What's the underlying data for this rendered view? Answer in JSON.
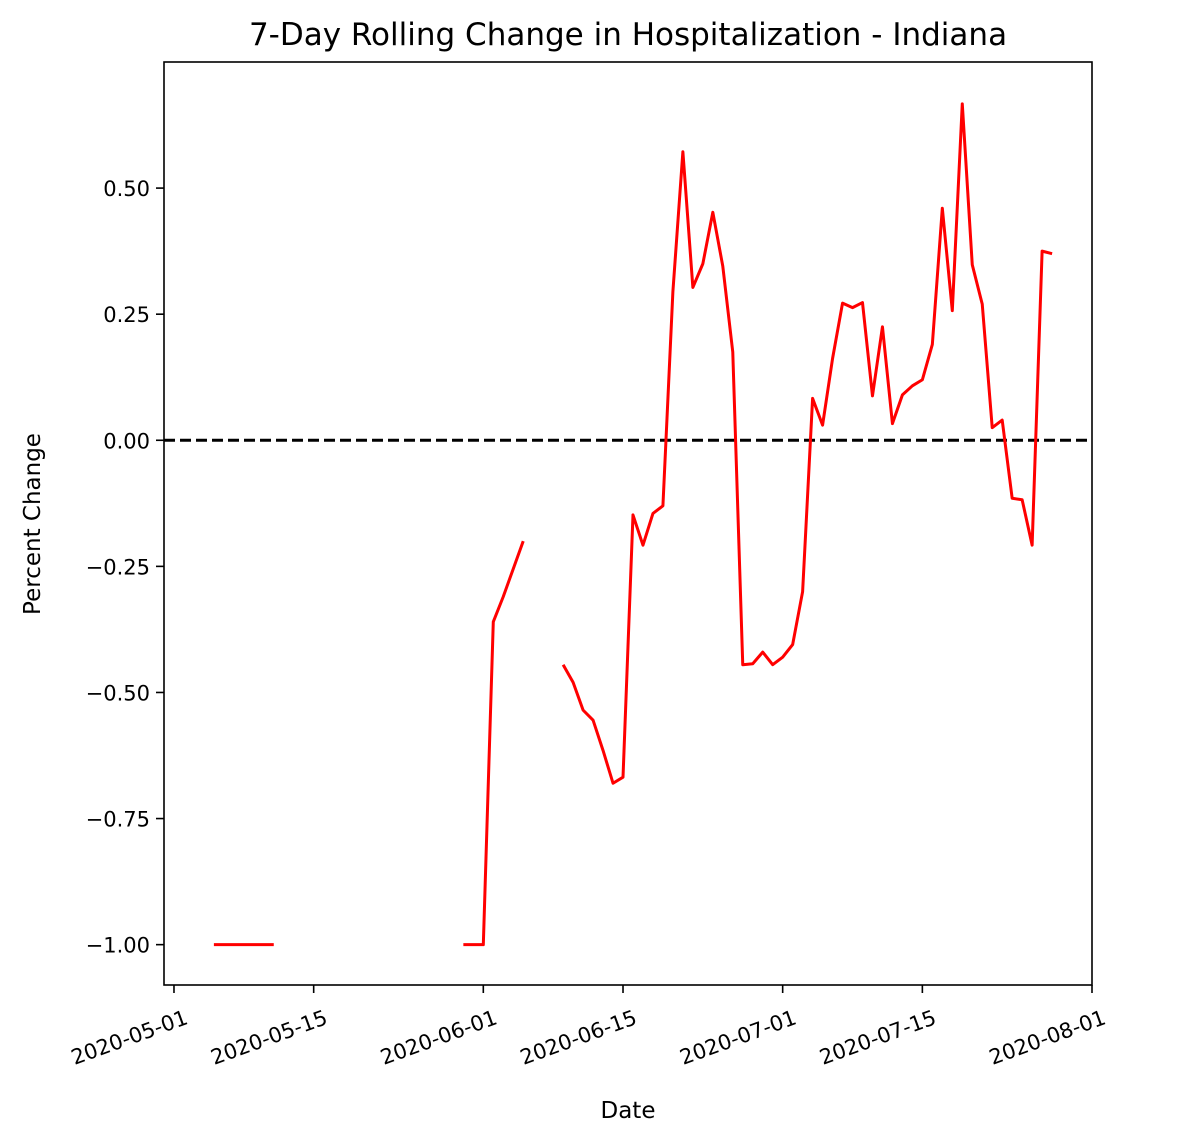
{
  "chart_data": {
    "type": "line",
    "title": "7-Day Rolling Change in Hospitalization - Indiana",
    "xlabel": "Date",
    "ylabel": "Percent Change",
    "xlim": [
      "2020-04-30",
      "2020-08-01"
    ],
    "ylim": [
      -1.08,
      0.75
    ],
    "x_ticks": [
      "2020-05-01",
      "2020-05-15",
      "2020-06-01",
      "2020-06-15",
      "2020-07-01",
      "2020-07-15",
      "2020-08-01"
    ],
    "y_ticks": [
      {
        "value": -1.0,
        "label": "−1.00"
      },
      {
        "value": -0.75,
        "label": "−0.75"
      },
      {
        "value": -0.5,
        "label": "−0.50"
      },
      {
        "value": -0.25,
        "label": "−0.25"
      },
      {
        "value": 0.0,
        "label": "0.00"
      },
      {
        "value": 0.25,
        "label": "0.25"
      },
      {
        "value": 0.5,
        "label": "0.50"
      }
    ],
    "grid": false,
    "reference_line": {
      "y": 0.0,
      "style": "dashed",
      "color": "#000000"
    },
    "series": [
      {
        "color": "#ff0000",
        "segments": [
          [
            {
              "x": "2020-05-05",
              "y": -1.0
            },
            {
              "x": "2020-05-11",
              "y": -1.0
            }
          ],
          [
            {
              "x": "2020-05-30",
              "y": -1.0
            },
            {
              "x": "2020-06-01",
              "y": -1.0
            },
            {
              "x": "2020-06-02",
              "y": -0.36
            },
            {
              "x": "2020-06-03",
              "y": -0.31
            },
            {
              "x": "2020-06-04",
              "y": -0.255
            },
            {
              "x": "2020-06-05",
              "y": -0.2
            }
          ],
          [
            {
              "x": "2020-06-09",
              "y": -0.445
            },
            {
              "x": "2020-06-10",
              "y": -0.48
            },
            {
              "x": "2020-06-11",
              "y": -0.535
            },
            {
              "x": "2020-06-12",
              "y": -0.555
            },
            {
              "x": "2020-06-13",
              "y": -0.615
            },
            {
              "x": "2020-06-14",
              "y": -0.68
            },
            {
              "x": "2020-06-15",
              "y": -0.668
            },
            {
              "x": "2020-06-16",
              "y": -0.148
            },
            {
              "x": "2020-06-17",
              "y": -0.208
            },
            {
              "x": "2020-06-18",
              "y": -0.145
            },
            {
              "x": "2020-06-19",
              "y": -0.13
            },
            {
              "x": "2020-06-20",
              "y": 0.295
            },
            {
              "x": "2020-06-21",
              "y": 0.572
            },
            {
              "x": "2020-06-22",
              "y": 0.303
            },
            {
              "x": "2020-06-23",
              "y": 0.35
            },
            {
              "x": "2020-06-24",
              "y": 0.452
            },
            {
              "x": "2020-06-25",
              "y": 0.345
            },
            {
              "x": "2020-06-26",
              "y": 0.175
            },
            {
              "x": "2020-06-27",
              "y": -0.445
            },
            {
              "x": "2020-06-28",
              "y": -0.443
            },
            {
              "x": "2020-06-29",
              "y": -0.42
            },
            {
              "x": "2020-06-30",
              "y": -0.445
            },
            {
              "x": "2020-07-01",
              "y": -0.43
            },
            {
              "x": "2020-07-02",
              "y": -0.405
            },
            {
              "x": "2020-07-03",
              "y": -0.3
            },
            {
              "x": "2020-07-04",
              "y": 0.083
            },
            {
              "x": "2020-07-05",
              "y": 0.03
            },
            {
              "x": "2020-07-06",
              "y": 0.162
            },
            {
              "x": "2020-07-07",
              "y": 0.272
            },
            {
              "x": "2020-07-08",
              "y": 0.263
            },
            {
              "x": "2020-07-09",
              "y": 0.273
            },
            {
              "x": "2020-07-10",
              "y": 0.088
            },
            {
              "x": "2020-07-11",
              "y": 0.225
            },
            {
              "x": "2020-07-12",
              "y": 0.033
            },
            {
              "x": "2020-07-13",
              "y": 0.09
            },
            {
              "x": "2020-07-14",
              "y": 0.108
            },
            {
              "x": "2020-07-15",
              "y": 0.12
            },
            {
              "x": "2020-07-16",
              "y": 0.19
            },
            {
              "x": "2020-07-17",
              "y": 0.46
            },
            {
              "x": "2020-07-18",
              "y": 0.257
            },
            {
              "x": "2020-07-19",
              "y": 0.667
            },
            {
              "x": "2020-07-20",
              "y": 0.348
            },
            {
              "x": "2020-07-21",
              "y": 0.27
            },
            {
              "x": "2020-07-22",
              "y": 0.025
            },
            {
              "x": "2020-07-23",
              "y": 0.04
            },
            {
              "x": "2020-07-24",
              "y": -0.115
            },
            {
              "x": "2020-07-25",
              "y": -0.118
            },
            {
              "x": "2020-07-26",
              "y": -0.208
            },
            {
              "x": "2020-07-27",
              "y": 0.375
            },
            {
              "x": "2020-07-28",
              "y": 0.37
            }
          ]
        ]
      }
    ]
  }
}
